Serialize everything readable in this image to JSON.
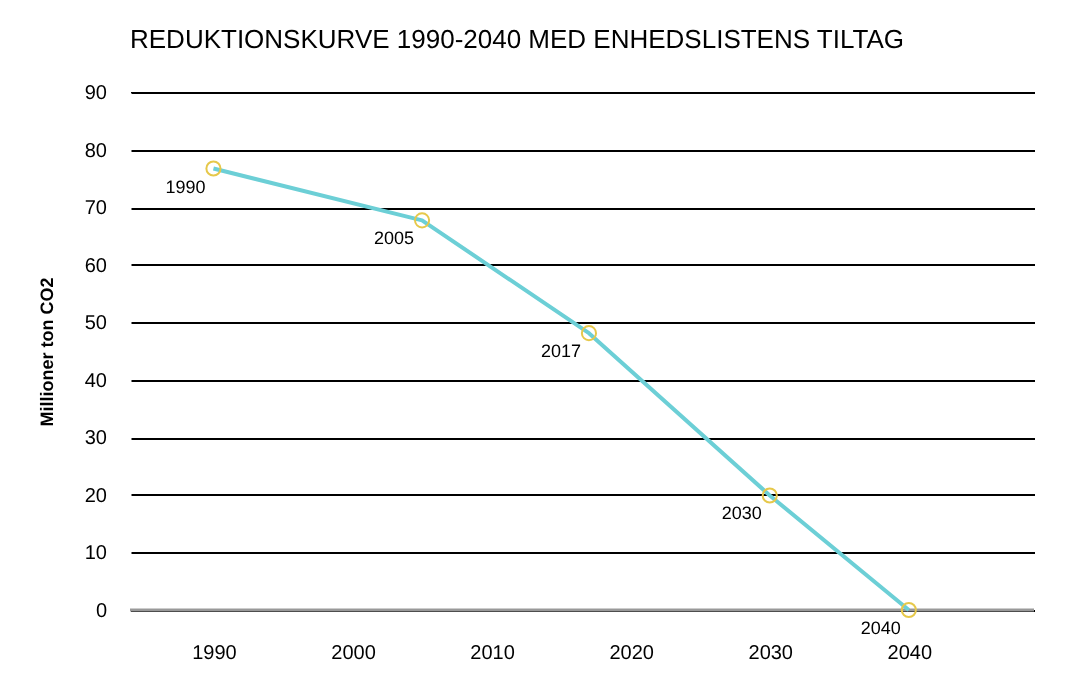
{
  "chart_data": {
    "type": "line",
    "title": "REDUKTIONSKURVE 1990-2040 MED ENHEDSLISTENS TILTAG",
    "ylabel": "Millioner  ton CO2",
    "x": [
      1990,
      2005,
      2017,
      2030,
      2040
    ],
    "series": [
      {
        "color": "#6ccfd6",
        "values": [
          76.7,
          67.7,
          48.1,
          19.9,
          0
        ]
      }
    ],
    "xlim": [
      1984,
      2049
    ],
    "xticks": [
      1990,
      2000,
      2010,
      2020,
      2030,
      2040
    ],
    "ylim": [
      0,
      90
    ],
    "yticks": [
      0,
      10,
      20,
      30,
      40,
      50,
      60,
      70,
      80,
      90
    ],
    "grid": "y",
    "marker": "circle",
    "line_style": "solid",
    "annotations": [
      {
        "text": "1990",
        "x": 1990,
        "y": 76.7
      },
      {
        "text": "2005",
        "x": 2005,
        "y": 67.7
      },
      {
        "text": "2017",
        "x": 2017,
        "y": 48.1
      },
      {
        "text": "2030",
        "x": 2030,
        "y": 19.9
      },
      {
        "text": "2040",
        "x": 2040,
        "y": 0
      }
    ]
  }
}
